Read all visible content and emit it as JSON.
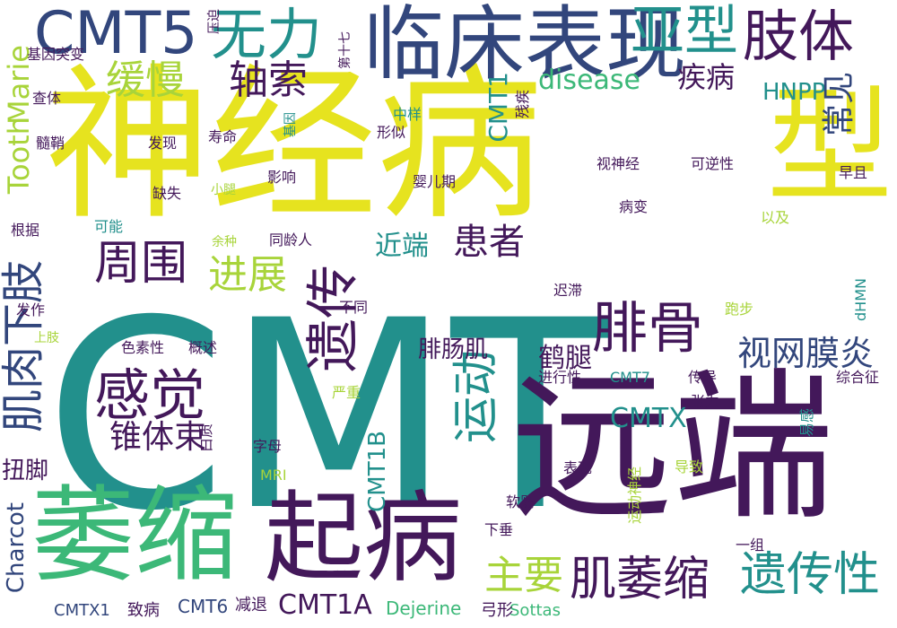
{
  "colors": {
    "yellow": "#e6e31f",
    "teal": "#22908c",
    "green": "#3cb878",
    "purple": "#43185a",
    "navy": "#32467c",
    "lime": "#a8d43a",
    "cyan": "#2c7f8e"
  },
  "words": [
    "CMT",
    "神经病",
    "远端",
    "萎缩",
    "起病",
    "型",
    "临床表现",
    "CMT5",
    "无力",
    "亚型",
    "肢体",
    "感觉",
    "腓骨",
    "遗传",
    "运动",
    "肌萎缩",
    "遗传性",
    "肌肉下肢",
    "周围",
    "进展",
    "轴索",
    "缓慢",
    "主要",
    "患者",
    "视网膜炎",
    "锥体束",
    "CMTX",
    "鹤腿",
    "腓肠肌",
    "近端",
    "扭脚",
    "疾病",
    "HNPP",
    "常见",
    "Tooth",
    "Marie",
    "Charcot",
    "disease",
    "CMT1",
    "CMT1B",
    "CMT1A",
    "CMTX1",
    "致病",
    "CMT6",
    "减退",
    "Dejerine",
    "Sottas",
    "弓形",
    "基因突变",
    "查体",
    "髓鞘",
    "发现",
    "寿命",
    "缺失",
    "根据",
    "可能",
    "发作",
    "上肢",
    "色素性",
    "概述",
    "中样",
    "残疾",
    "形似",
    "视神经",
    "可逆性",
    "婴儿期",
    "早且",
    "小腿",
    "影响",
    "病变",
    "以及",
    "余种",
    "同龄人",
    "迟滞",
    "跑步",
    "不同",
    "进行性",
    "CMT7",
    "传导",
    "严重",
    "综合征",
    "张力",
    "易感",
    "白质",
    "字母",
    "MRI",
    "表现",
    "运动神经",
    "导致",
    "软婴",
    "下垂",
    "一组",
    "dHMN",
    "基因",
    "第十七",
    "压迫"
  ]
}
